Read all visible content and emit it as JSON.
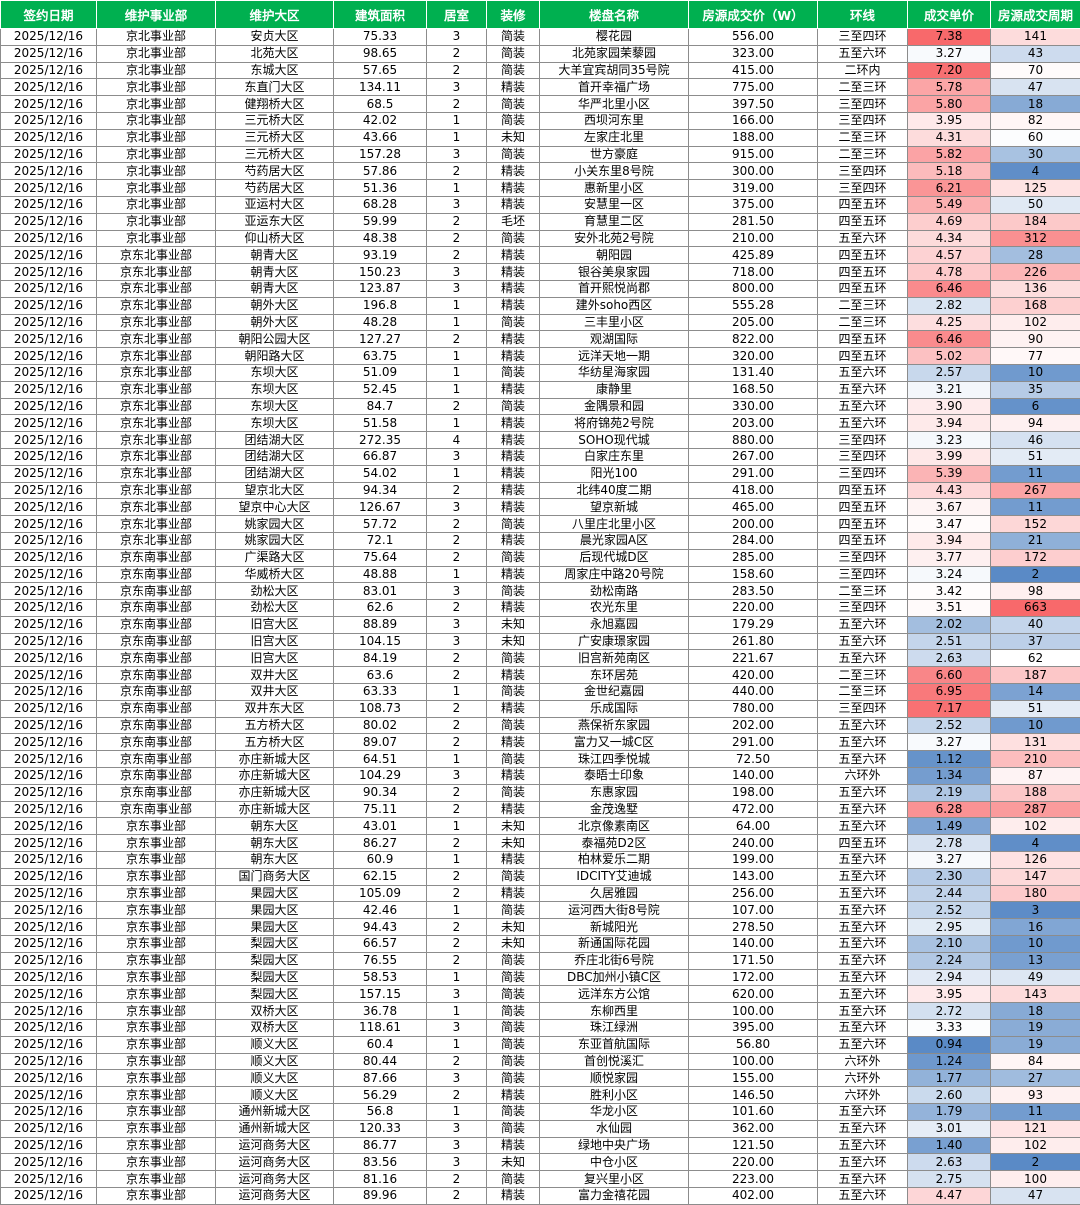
{
  "columns": [
    "签约日期",
    "维护事业部",
    "维护大区",
    "建筑面积",
    "居室",
    "装修",
    "楼盘名称",
    "房源成交价（W）",
    "环线",
    "成交单价",
    "房源成交周期"
  ],
  "colors": {
    "header_bg": "#00b050",
    "header_text": "#ffffff",
    "price_high": "#f8696b",
    "price_low": "#5a8ac6",
    "cycle_high": "#f8696b",
    "cycle_low": "#5a8ac6"
  },
  "rows": [
    [
      "2025/12/16",
      "京北事业部",
      "安贞大区",
      "75.33",
      "3",
      "简装",
      "樱花园",
      "556.00",
      "三至四环",
      "7.38",
      "141"
    ],
    [
      "2025/12/16",
      "京北事业部",
      "北苑大区",
      "98.65",
      "2",
      "简装",
      "北苑家园茉藜园",
      "323.00",
      "五至六环",
      "3.27",
      "43"
    ],
    [
      "2025/12/16",
      "京北事业部",
      "东城大区",
      "57.65",
      "2",
      "简装",
      "大羊宜宾胡同35号院",
      "415.00",
      "二环内",
      "7.20",
      "70"
    ],
    [
      "2025/12/16",
      "京北事业部",
      "东直门大区",
      "134.11",
      "3",
      "精装",
      "首开幸福广场",
      "775.00",
      "二至三环",
      "5.78",
      "47"
    ],
    [
      "2025/12/16",
      "京北事业部",
      "健翔桥大区",
      "68.5",
      "2",
      "简装",
      "华严北里小区",
      "397.50",
      "三至四环",
      "5.80",
      "18"
    ],
    [
      "2025/12/16",
      "京北事业部",
      "三元桥大区",
      "42.02",
      "1",
      "简装",
      "西坝河东里",
      "166.00",
      "三至四环",
      "3.95",
      "82"
    ],
    [
      "2025/12/16",
      "京北事业部",
      "三元桥大区",
      "43.66",
      "1",
      "未知",
      "左家庄北里",
      "188.00",
      "二至三环",
      "4.31",
      "60"
    ],
    [
      "2025/12/16",
      "京北事业部",
      "三元桥大区",
      "157.28",
      "3",
      "简装",
      "世方豪庭",
      "915.00",
      "二至三环",
      "5.82",
      "30"
    ],
    [
      "2025/12/16",
      "京北事业部",
      "芍药居大区",
      "57.86",
      "2",
      "精装",
      "小关东里8号院",
      "300.00",
      "三至四环",
      "5.18",
      "4"
    ],
    [
      "2025/12/16",
      "京北事业部",
      "芍药居大区",
      "51.36",
      "1",
      "精装",
      "惠新里小区",
      "319.00",
      "三至四环",
      "6.21",
      "125"
    ],
    [
      "2025/12/16",
      "京北事业部",
      "亚运村大区",
      "68.28",
      "3",
      "精装",
      "安慧里一区",
      "375.00",
      "四至五环",
      "5.49",
      "50"
    ],
    [
      "2025/12/16",
      "京北事业部",
      "亚运东大区",
      "59.99",
      "2",
      "毛坯",
      "育慧里二区",
      "281.50",
      "四至五环",
      "4.69",
      "184"
    ],
    [
      "2025/12/16",
      "京北事业部",
      "仰山桥大区",
      "48.38",
      "2",
      "简装",
      "安外北苑2号院",
      "210.00",
      "五至六环",
      "4.34",
      "312"
    ],
    [
      "2025/12/16",
      "京东北事业部",
      "朝青大区",
      "93.19",
      "2",
      "精装",
      "朝阳园",
      "425.89",
      "四至五环",
      "4.57",
      "28"
    ],
    [
      "2025/12/16",
      "京东北事业部",
      "朝青大区",
      "150.23",
      "3",
      "精装",
      "银谷美泉家园",
      "718.00",
      "四至五环",
      "4.78",
      "226"
    ],
    [
      "2025/12/16",
      "京东北事业部",
      "朝青大区",
      "123.87",
      "3",
      "精装",
      "首开熙悦尚郡",
      "800.00",
      "四至五环",
      "6.46",
      "136"
    ],
    [
      "2025/12/16",
      "京东北事业部",
      "朝外大区",
      "196.8",
      "1",
      "精装",
      "建外soho西区",
      "555.28",
      "二至三环",
      "2.82",
      "168"
    ],
    [
      "2025/12/16",
      "京东北事业部",
      "朝外大区",
      "48.28",
      "1",
      "简装",
      "三丰里小区",
      "205.00",
      "二至三环",
      "4.25",
      "102"
    ],
    [
      "2025/12/16",
      "京东北事业部",
      "朝阳公园大区",
      "127.27",
      "2",
      "精装",
      "观湖国际",
      "822.00",
      "四至五环",
      "6.46",
      "90"
    ],
    [
      "2025/12/16",
      "京东北事业部",
      "朝阳路大区",
      "63.75",
      "1",
      "精装",
      "远洋天地一期",
      "320.00",
      "四至五环",
      "5.02",
      "77"
    ],
    [
      "2025/12/16",
      "京东北事业部",
      "东坝大区",
      "51.09",
      "1",
      "简装",
      "华纺星海家园",
      "131.40",
      "五至六环",
      "2.57",
      "10"
    ],
    [
      "2025/12/16",
      "京东北事业部",
      "东坝大区",
      "52.45",
      "1",
      "精装",
      "康静里",
      "168.50",
      "五至六环",
      "3.21",
      "35"
    ],
    [
      "2025/12/16",
      "京东北事业部",
      "东坝大区",
      "84.7",
      "2",
      "简装",
      "金隅景和园",
      "330.00",
      "五至六环",
      "3.90",
      "6"
    ],
    [
      "2025/12/16",
      "京东北事业部",
      "东坝大区",
      "51.58",
      "1",
      "精装",
      "将府锦苑2号院",
      "203.00",
      "五至六环",
      "3.94",
      "94"
    ],
    [
      "2025/12/16",
      "京东北事业部",
      "团结湖大区",
      "272.35",
      "4",
      "精装",
      "SOHO现代城",
      "880.00",
      "三至四环",
      "3.23",
      "46"
    ],
    [
      "2025/12/16",
      "京东北事业部",
      "团结湖大区",
      "66.87",
      "3",
      "精装",
      "白家庄东里",
      "267.00",
      "三至四环",
      "3.99",
      "51"
    ],
    [
      "2025/12/16",
      "京东北事业部",
      "团结湖大区",
      "54.02",
      "1",
      "精装",
      "阳光100",
      "291.00",
      "三至四环",
      "5.39",
      "11"
    ],
    [
      "2025/12/16",
      "京东北事业部",
      "望京北大区",
      "94.34",
      "2",
      "精装",
      "北纬40度二期",
      "418.00",
      "四至五环",
      "4.43",
      "267"
    ],
    [
      "2025/12/16",
      "京东北事业部",
      "望京中心大区",
      "126.67",
      "3",
      "精装",
      "望京新城",
      "465.00",
      "四至五环",
      "3.67",
      "11"
    ],
    [
      "2025/12/16",
      "京东北事业部",
      "姚家园大区",
      "57.72",
      "2",
      "简装",
      "八里庄北里小区",
      "200.00",
      "四至五环",
      "3.47",
      "152"
    ],
    [
      "2025/12/16",
      "京东北事业部",
      "姚家园大区",
      "72.1",
      "2",
      "精装",
      "晨光家园A区",
      "284.00",
      "四至五环",
      "3.94",
      "21"
    ],
    [
      "2025/12/16",
      "京东南事业部",
      "广渠路大区",
      "75.64",
      "2",
      "简装",
      "后现代城D区",
      "285.00",
      "三至四环",
      "3.77",
      "172"
    ],
    [
      "2025/12/16",
      "京东南事业部",
      "华威桥大区",
      "48.88",
      "1",
      "精装",
      "周家庄中路20号院",
      "158.60",
      "三至四环",
      "3.24",
      "2"
    ],
    [
      "2025/12/16",
      "京东南事业部",
      "劲松大区",
      "83.01",
      "3",
      "简装",
      "劲松南路",
      "283.50",
      "二至三环",
      "3.42",
      "98"
    ],
    [
      "2025/12/16",
      "京东南事业部",
      "劲松大区",
      "62.6",
      "2",
      "精装",
      "农光东里",
      "220.00",
      "三至四环",
      "3.51",
      "663"
    ],
    [
      "2025/12/16",
      "京东南事业部",
      "旧宫大区",
      "88.89",
      "3",
      "未知",
      "永旭嘉园",
      "179.29",
      "五至六环",
      "2.02",
      "40"
    ],
    [
      "2025/12/16",
      "京东南事业部",
      "旧宫大区",
      "104.15",
      "3",
      "未知",
      "广安康璟家园",
      "261.80",
      "五至六环",
      "2.51",
      "37"
    ],
    [
      "2025/12/16",
      "京东南事业部",
      "旧宫大区",
      "84.19",
      "2",
      "简装",
      "旧宫新苑南区",
      "221.67",
      "五至六环",
      "2.63",
      "62"
    ],
    [
      "2025/12/16",
      "京东南事业部",
      "双井大区",
      "63.6",
      "2",
      "精装",
      "东环居苑",
      "420.00",
      "二至三环",
      "6.60",
      "187"
    ],
    [
      "2025/12/16",
      "京东南事业部",
      "双井大区",
      "63.33",
      "1",
      "简装",
      "金世纪嘉园",
      "440.00",
      "二至三环",
      "6.95",
      "14"
    ],
    [
      "2025/12/16",
      "京东南事业部",
      "双井东大区",
      "108.73",
      "2",
      "精装",
      "乐成国际",
      "780.00",
      "三至四环",
      "7.17",
      "51"
    ],
    [
      "2025/12/16",
      "京东南事业部",
      "五方桥大区",
      "80.02",
      "2",
      "简装",
      "燕保祈东家园",
      "202.00",
      "五至六环",
      "2.52",
      "10"
    ],
    [
      "2025/12/16",
      "京东南事业部",
      "五方桥大区",
      "89.07",
      "2",
      "精装",
      "富力又一城C区",
      "291.00",
      "五至六环",
      "3.27",
      "131"
    ],
    [
      "2025/12/16",
      "京东南事业部",
      "亦庄新城大区",
      "64.51",
      "1",
      "简装",
      "珠江四季悦城",
      "72.50",
      "五至六环",
      "1.12",
      "210"
    ],
    [
      "2025/12/16",
      "京东南事业部",
      "亦庄新城大区",
      "104.29",
      "3",
      "精装",
      "泰晤士印象",
      "140.00",
      "六环外",
      "1.34",
      "87"
    ],
    [
      "2025/12/16",
      "京东南事业部",
      "亦庄新城大区",
      "90.34",
      "2",
      "简装",
      "东惠家园",
      "198.00",
      "五至六环",
      "2.19",
      "188"
    ],
    [
      "2025/12/16",
      "京东南事业部",
      "亦庄新城大区",
      "75.11",
      "2",
      "精装",
      "金茂逸墅",
      "472.00",
      "五至六环",
      "6.28",
      "287"
    ],
    [
      "2025/12/16",
      "京东事业部",
      "朝东大区",
      "43.01",
      "1",
      "未知",
      "北京像素南区",
      "64.00",
      "五至六环",
      "1.49",
      "102"
    ],
    [
      "2025/12/16",
      "京东事业部",
      "朝东大区",
      "86.27",
      "2",
      "未知",
      "泰福苑D2区",
      "240.00",
      "四至五环",
      "2.78",
      "4"
    ],
    [
      "2025/12/16",
      "京东事业部",
      "朝东大区",
      "60.9",
      "1",
      "精装",
      "柏林爱乐二期",
      "199.00",
      "五至六环",
      "3.27",
      "126"
    ],
    [
      "2025/12/16",
      "京东事业部",
      "国门商务大区",
      "62.15",
      "2",
      "简装",
      "IDCITY艾迪城",
      "143.00",
      "五至六环",
      "2.30",
      "147"
    ],
    [
      "2025/12/16",
      "京东事业部",
      "果园大区",
      "105.09",
      "2",
      "精装",
      "久居雅园",
      "256.00",
      "五至六环",
      "2.44",
      "180"
    ],
    [
      "2025/12/16",
      "京东事业部",
      "果园大区",
      "42.46",
      "1",
      "简装",
      "运河西大街8号院",
      "107.00",
      "五至六环",
      "2.52",
      "3"
    ],
    [
      "2025/12/16",
      "京东事业部",
      "果园大区",
      "94.43",
      "2",
      "未知",
      "新城阳光",
      "278.50",
      "五至六环",
      "2.95",
      "16"
    ],
    [
      "2025/12/16",
      "京东事业部",
      "梨园大区",
      "66.57",
      "2",
      "未知",
      "新通国际花园",
      "140.00",
      "五至六环",
      "2.10",
      "10"
    ],
    [
      "2025/12/16",
      "京东事业部",
      "梨园大区",
      "76.55",
      "2",
      "简装",
      "乔庄北街6号院",
      "171.50",
      "五至六环",
      "2.24",
      "13"
    ],
    [
      "2025/12/16",
      "京东事业部",
      "梨园大区",
      "58.53",
      "1",
      "简装",
      "DBC加州小镇C区",
      "172.00",
      "五至六环",
      "2.94",
      "49"
    ],
    [
      "2025/12/16",
      "京东事业部",
      "梨园大区",
      "157.15",
      "3",
      "简装",
      "远洋东方公馆",
      "620.00",
      "五至六环",
      "3.95",
      "143"
    ],
    [
      "2025/12/16",
      "京东事业部",
      "双桥大区",
      "36.78",
      "1",
      "简装",
      "东柳西里",
      "100.00",
      "五至六环",
      "2.72",
      "18"
    ],
    [
      "2025/12/16",
      "京东事业部",
      "双桥大区",
      "118.61",
      "3",
      "简装",
      "珠江绿洲",
      "395.00",
      "五至六环",
      "3.33",
      "19"
    ],
    [
      "2025/12/16",
      "京东事业部",
      "顺义大区",
      "60.4",
      "1",
      "简装",
      "东亚首航国际",
      "56.80",
      "五至六环",
      "0.94",
      "19"
    ],
    [
      "2025/12/16",
      "京东事业部",
      "顺义大区",
      "80.44",
      "2",
      "简装",
      "首创悦溪汇",
      "100.00",
      "六环外",
      "1.24",
      "84"
    ],
    [
      "2025/12/16",
      "京东事业部",
      "顺义大区",
      "87.66",
      "3",
      "简装",
      "顺悦家园",
      "155.00",
      "六环外",
      "1.77",
      "27"
    ],
    [
      "2025/12/16",
      "京东事业部",
      "顺义大区",
      "56.29",
      "2",
      "精装",
      "胜利小区",
      "146.50",
      "六环外",
      "2.60",
      "93"
    ],
    [
      "2025/12/16",
      "京东事业部",
      "通州新城大区",
      "56.8",
      "1",
      "简装",
      "华龙小区",
      "101.60",
      "五至六环",
      "1.79",
      "11"
    ],
    [
      "2025/12/16",
      "京东事业部",
      "通州新城大区",
      "120.33",
      "3",
      "简装",
      "水仙园",
      "362.00",
      "五至六环",
      "3.01",
      "121"
    ],
    [
      "2025/12/16",
      "京东事业部",
      "运河商务大区",
      "86.77",
      "3",
      "精装",
      "绿地中央广场",
      "121.50",
      "五至六环",
      "1.40",
      "102"
    ],
    [
      "2025/12/16",
      "京东事业部",
      "运河商务大区",
      "83.56",
      "3",
      "未知",
      "中仓小区",
      "220.00",
      "五至六环",
      "2.63",
      "2"
    ],
    [
      "2025/12/16",
      "京东事业部",
      "运河商务大区",
      "81.16",
      "2",
      "简装",
      "复兴里小区",
      "223.00",
      "五至六环",
      "2.75",
      "100"
    ],
    [
      "2025/12/16",
      "京东事业部",
      "运河商务大区",
      "89.96",
      "2",
      "精装",
      "富力金禧花园",
      "402.00",
      "五至六环",
      "4.47",
      "47"
    ]
  ]
}
